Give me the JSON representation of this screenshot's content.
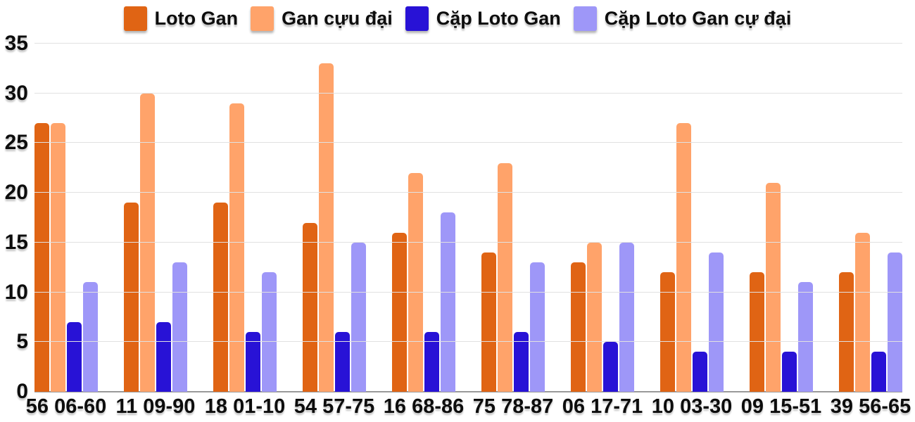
{
  "chart_data": {
    "type": "bar",
    "title": "",
    "xlabel": "",
    "ylabel": "",
    "ylim": [
      0,
      35
    ],
    "yticks": [
      0,
      5,
      10,
      15,
      20,
      25,
      30,
      35
    ],
    "grid": true,
    "legend_position": "top",
    "categories": [
      "56 06-60",
      "11 09-90",
      "18 01-10",
      "54 57-75",
      "16 68-86",
      "75 78-87",
      "06 17-71",
      "10 03-30",
      "09 15-51",
      "39 56-65"
    ],
    "series": [
      {
        "name": "Loto Gan",
        "color": "#e06414",
        "values": [
          27,
          19,
          19,
          17,
          16,
          14,
          13,
          12,
          12,
          12
        ]
      },
      {
        "name": "Gan cựu đại",
        "color": "#ffa36a",
        "values": [
          27,
          30,
          29,
          33,
          22,
          23,
          15,
          27,
          21,
          16
        ]
      },
      {
        "name": "Cặp Loto Gan",
        "color": "#2812d6",
        "values": [
          7,
          7,
          6,
          6,
          6,
          6,
          5,
          4,
          4,
          4
        ]
      },
      {
        "name": "Cặp Loto Gan cự đại",
        "color": "#9e97f8",
        "values": [
          11,
          13,
          12,
          15,
          18,
          13,
          15,
          14,
          11,
          14
        ]
      }
    ],
    "colors": {
      "gridline": "#e1e1e1",
      "axis_line": "#9a9a9a",
      "text": "#0d0d0d",
      "background": "#ffffff"
    }
  }
}
